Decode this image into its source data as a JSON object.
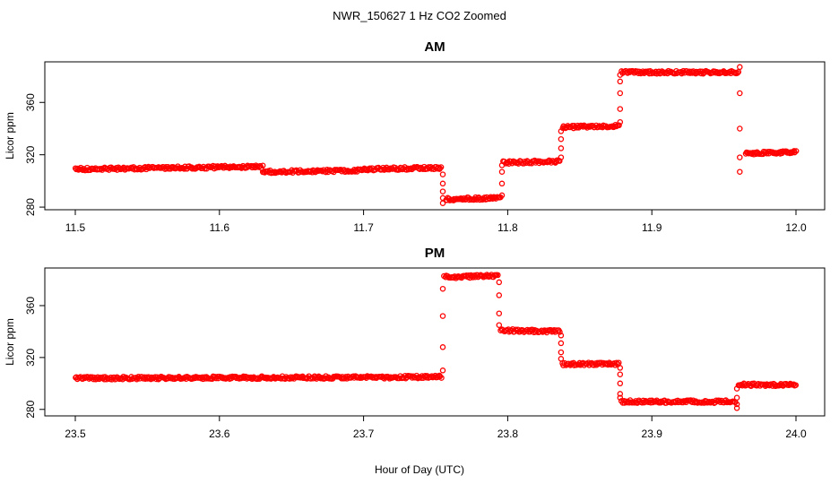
{
  "chart_title": "NWR_150627  1 Hz CO2 Zoomed",
  "xlabel": "Hour of Day (UTC)",
  "colors": {
    "points": "#ff0000",
    "axes": "#000000"
  },
  "chart_data": [
    {
      "type": "scatter",
      "title": "AM",
      "xlabel": "Hour of Day (UTC)",
      "ylabel": "Licor ppm",
      "xlim": [
        11.5,
        12.0
      ],
      "ylim": [
        278,
        391
      ],
      "xticks": [
        11.5,
        11.6,
        11.7,
        11.8,
        11.9,
        12.0
      ],
      "xtick_labels": [
        "11.5",
        "11.6",
        "11.7",
        "11.8",
        "11.9",
        "12.0"
      ],
      "yticks": [
        280,
        320,
        360
      ],
      "ytick_labels": [
        "280",
        "320",
        "360"
      ],
      "grid": false,
      "marker": "open-circle",
      "series": [
        {
          "segments": [
            {
              "x": [
                11.5,
                11.63
              ],
              "y": [
                309,
                311
              ]
            },
            {
              "x": [
                11.63,
                11.7
              ],
              "y": [
                307,
                308
              ]
            },
            {
              "x": [
                11.7,
                11.754
              ],
              "y": [
                309,
                310
              ]
            },
            {
              "x": [
                11.757,
                11.795
              ],
              "y": [
                286,
                287
              ]
            },
            {
              "x": [
                11.797,
                11.836
              ],
              "y": [
                314,
                315
              ]
            },
            {
              "x": [
                11.838,
                11.877
              ],
              "y": [
                341,
                342
              ]
            },
            {
              "x": [
                11.879,
                11.96
              ],
              "y": [
                383,
                383
              ]
            },
            {
              "x": [
                11.965,
                12.0
              ],
              "y": [
                321,
                322
              ]
            }
          ],
          "transitions": [
            {
              "x": 11.755,
              "y": [
                305,
                298,
                292,
                287,
                283
              ]
            },
            {
              "x": 11.796,
              "y": [
                289,
                298,
                307,
                312
              ]
            },
            {
              "x": 11.837,
              "y": [
                318,
                325,
                332,
                338
              ]
            },
            {
              "x": 11.878,
              "y": [
                345,
                355,
                367,
                376,
                381
              ]
            },
            {
              "x": 11.961,
              "y": [
                387,
                367,
                340,
                318,
                307
              ]
            }
          ]
        }
      ]
    },
    {
      "type": "scatter",
      "title": "PM",
      "xlabel": "Hour of Day (UTC)",
      "ylabel": "Licor ppm",
      "xlim": [
        23.5,
        24.0
      ],
      "ylim": [
        275,
        389
      ],
      "xticks": [
        23.5,
        23.6,
        23.7,
        23.8,
        23.9,
        24.0
      ],
      "xtick_labels": [
        "23.5",
        "23.6",
        "23.7",
        "23.8",
        "23.9",
        "24.0"
      ],
      "yticks": [
        280,
        320,
        360
      ],
      "ytick_labels": [
        "280",
        "320",
        "360"
      ],
      "grid": false,
      "marker": "open-circle",
      "series": [
        {
          "segments": [
            {
              "x": [
                23.5,
                23.754
              ],
              "y": [
                304,
                305
              ]
            },
            {
              "x": [
                23.756,
                23.793
              ],
              "y": [
                382,
                383
              ]
            },
            {
              "x": [
                23.795,
                23.836
              ],
              "y": [
                341,
                340
              ]
            },
            {
              "x": [
                23.838,
                23.877
              ],
              "y": [
                315,
                315
              ]
            },
            {
              "x": [
                23.879,
                23.958
              ],
              "y": [
                286,
                286
              ]
            },
            {
              "x": [
                23.96,
                24.0
              ],
              "y": [
                299,
                299
              ]
            }
          ],
          "transitions": [
            {
              "x": 23.755,
              "y": [
                310,
                328,
                352,
                373
              ]
            },
            {
              "x": 23.794,
              "y": [
                378,
                368,
                354,
                345
              ]
            },
            {
              "x": 23.837,
              "y": [
                337,
                331,
                324,
                319
              ]
            },
            {
              "x": 23.878,
              "y": [
                312,
                307,
                300,
                292,
                289
              ]
            },
            {
              "x": 23.959,
              "y": [
                284,
                281,
                289,
                296
              ]
            }
          ]
        }
      ]
    }
  ]
}
